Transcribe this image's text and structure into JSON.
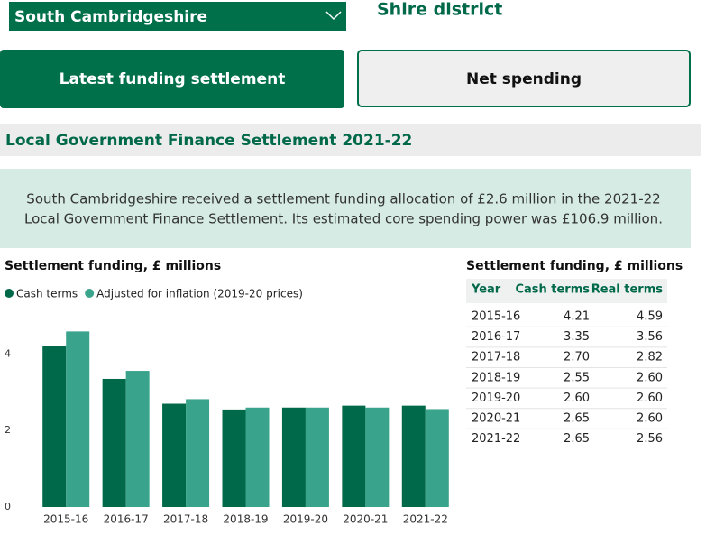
{
  "header": {
    "dropdown": "South Cambridgeshire",
    "district_type": "Shire district"
  },
  "buttons": [
    "Latest funding settlement",
    "Net spending"
  ],
  "section_title": "Local Government Finance Settlement 2021-22",
  "summary": [
    "South Cambridgeshire received a settlement funding allocation of £2.6 million in the 2021-22",
    "Local Government Finance Settlement. Its estimated core spending power was £106.9 million."
  ],
  "chart_data": {
    "type": "bar",
    "title": "Settlement funding, £ millions",
    "categories": [
      "2015-16",
      "2016-17",
      "2017-18",
      "2018-19",
      "2019-20",
      "2020-21",
      "2021-22"
    ],
    "series": [
      {
        "name": "Cash terms",
        "color": "#00694a",
        "values": [
          4.21,
          3.35,
          2.7,
          2.55,
          2.6,
          2.65,
          2.65
        ]
      },
      {
        "name": "Adjusted for inflation (2019-20 prices)",
        "color": "#3aa38b",
        "values": [
          4.59,
          3.56,
          2.82,
          2.6,
          2.6,
          2.6,
          2.56
        ]
      }
    ],
    "ylim": [
      0,
      5
    ],
    "yticks": [
      0,
      2,
      4
    ],
    "legend": "top-left"
  },
  "table": {
    "title": "Settlement funding, £ millions",
    "columns": [
      "Year",
      "Cash terms",
      "Real terms"
    ],
    "rows": [
      [
        "2015-16",
        "4.21",
        "4.59"
      ],
      [
        "2016-17",
        "3.35",
        "3.56"
      ],
      [
        "2017-18",
        "2.70",
        "2.82"
      ],
      [
        "2018-19",
        "2.55",
        "2.60"
      ],
      [
        "2019-20",
        "2.60",
        "2.60"
      ],
      [
        "2020-21",
        "2.65",
        "2.60"
      ],
      [
        "2021-22",
        "2.65",
        "2.56"
      ]
    ]
  }
}
